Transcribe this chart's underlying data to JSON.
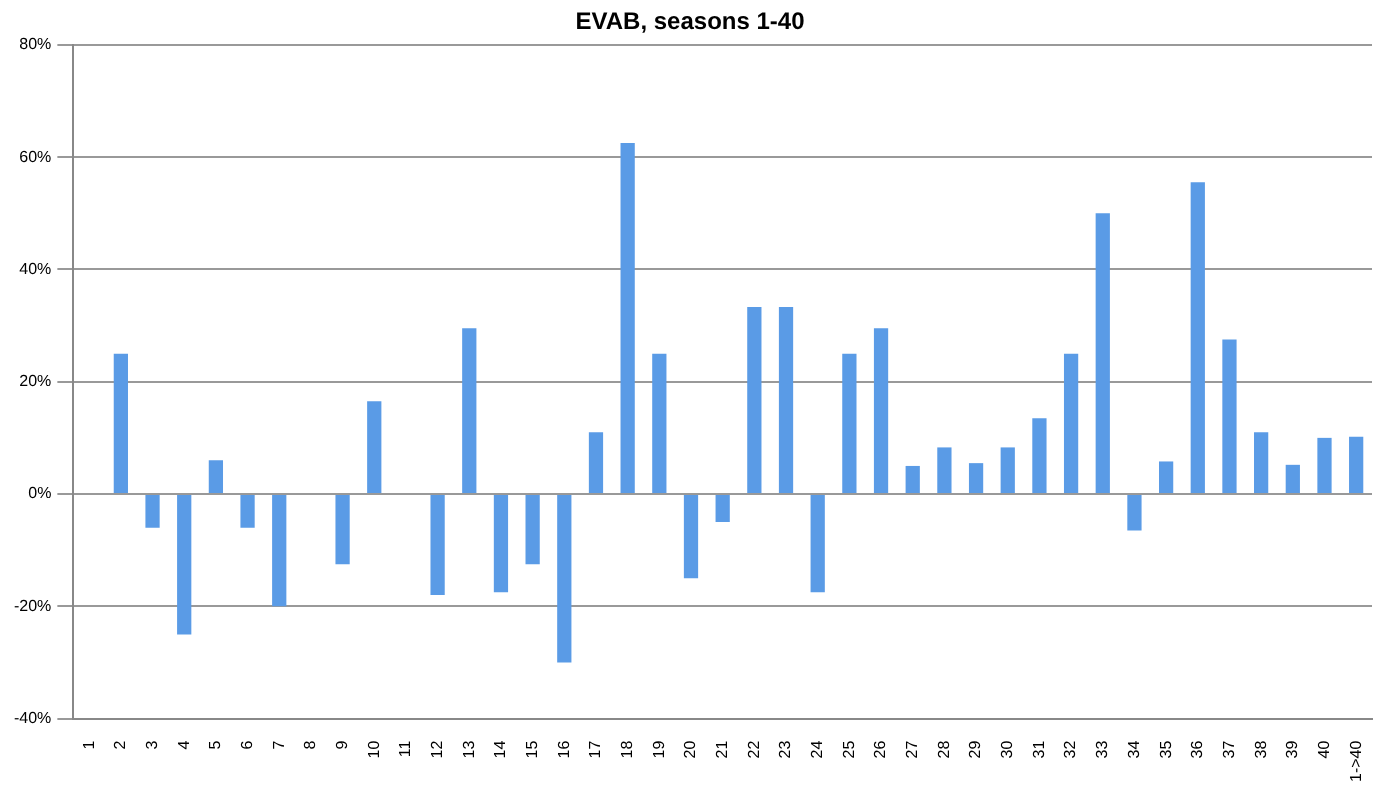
{
  "chart_data": {
    "type": "bar",
    "title": "EVAB, seasons 1-40",
    "categories": [
      "1",
      "2",
      "3",
      "4",
      "5",
      "6",
      "7",
      "8",
      "9",
      "10",
      "11",
      "12",
      "13",
      "14",
      "15",
      "16",
      "17",
      "18",
      "19",
      "20",
      "21",
      "22",
      "23",
      "24",
      "25",
      "26",
      "27",
      "28",
      "29",
      "30",
      "31",
      "32",
      "33",
      "34",
      "35",
      "36",
      "37",
      "38",
      "39",
      "40",
      "1->40"
    ],
    "values": [
      0,
      25,
      -6,
      -25,
      6,
      -6,
      -20,
      0,
      -12.5,
      16.5,
      0,
      -18,
      29.5,
      -17.5,
      -12.5,
      -30,
      11,
      62.5,
      25,
      -15,
      -5,
      33.3,
      33.3,
      -17.5,
      25,
      29.5,
      5,
      8.3,
      5.5,
      8.3,
      13.5,
      25,
      50,
      -6.5,
      5.8,
      55.5,
      27.5,
      11,
      5.2,
      10,
      10.2
    ],
    "color": "#5a9be6",
    "ylim": [
      -40,
      80
    ],
    "yticks": [
      {
        "value": -40,
        "label": "-40%"
      },
      {
        "value": -20,
        "label": "-20%"
      },
      {
        "value": 0,
        "label": "0%"
      },
      {
        "value": 20,
        "label": "20%"
      },
      {
        "value": 40,
        "label": "40%"
      },
      {
        "value": 60,
        "label": "60%"
      },
      {
        "value": 80,
        "label": "80%"
      }
    ],
    "grid": "y",
    "legend": false
  }
}
